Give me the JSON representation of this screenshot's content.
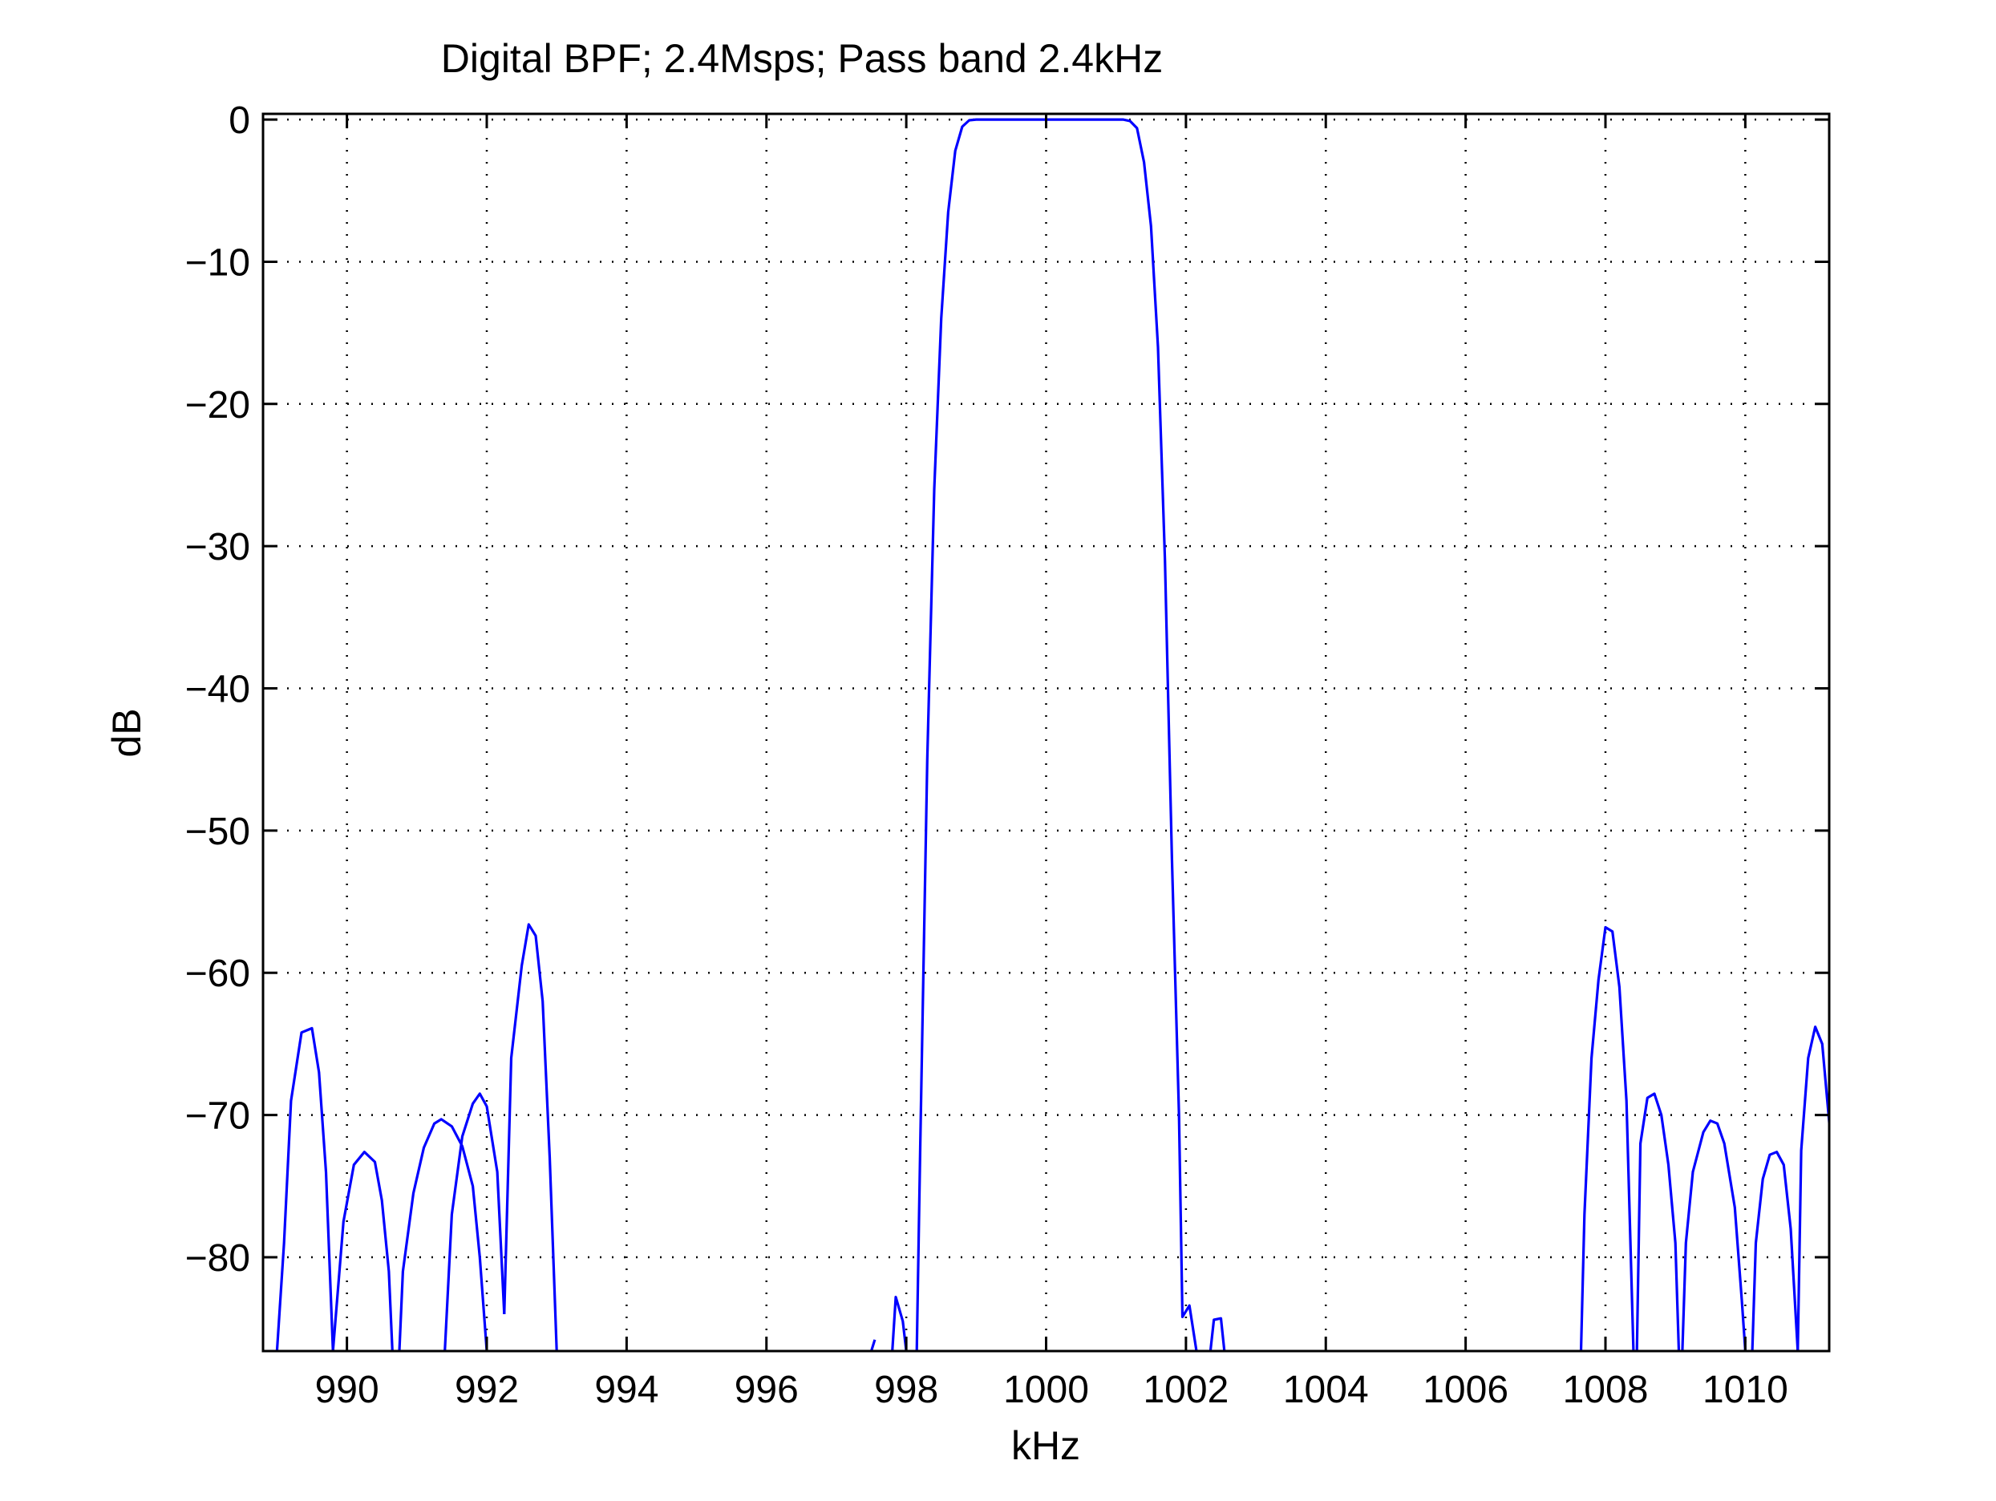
{
  "chart_data": {
    "type": "line",
    "title": "Digital BPF; 2.4Msps; Pass band 2.4kHz",
    "xlabel": "kHz",
    "ylabel": "dB",
    "xlim": [
      988.8,
      1011.2
    ],
    "ylim": [
      -86.6,
      0.4
    ],
    "xticks": [
      990,
      992,
      994,
      996,
      998,
      1000,
      1002,
      1004,
      1006,
      1008,
      1010
    ],
    "yticks": [
      0,
      -10,
      -20,
      -30,
      -40,
      -50,
      -60,
      -70,
      -80
    ],
    "ytick_labels": [
      "0",
      "−10",
      "−20",
      "−30",
      "−40",
      "−50",
      "−60",
      "−70",
      "−80"
    ],
    "grid": true,
    "series_color": "#0000ff",
    "series": [
      {
        "segments": [
          [
            [
              989.0,
              -86.6
            ],
            [
              989.1,
              -79
            ],
            [
              989.2,
              -69
            ],
            [
              989.35,
              -64.2
            ],
            [
              989.5,
              -63.9
            ],
            [
              989.6,
              -67
            ],
            [
              989.7,
              -74
            ],
            [
              989.8,
              -86.6
            ]
          ],
          [
            [
              989.8,
              -86.6
            ],
            [
              989.95,
              -77.5
            ],
            [
              990.1,
              -73.5
            ],
            [
              990.25,
              -72.6
            ],
            [
              990.4,
              -73.3
            ],
            [
              990.5,
              -76
            ],
            [
              990.6,
              -81
            ],
            [
              990.65,
              -86.6
            ]
          ],
          [
            [
              990.75,
              -86.6
            ],
            [
              990.8,
              -81
            ],
            [
              990.95,
              -75.5
            ],
            [
              991.1,
              -72.3
            ],
            [
              991.25,
              -70.6
            ],
            [
              991.35,
              -70.3
            ],
            [
              991.5,
              -70.8
            ],
            [
              991.65,
              -72.2
            ],
            [
              991.8,
              -75
            ],
            [
              991.9,
              -80
            ],
            [
              992.0,
              -86.6
            ]
          ],
          [
            [
              991.4,
              -86.6
            ],
            [
              991.5,
              -77
            ],
            [
              991.65,
              -71.5
            ],
            [
              991.8,
              -69.2
            ],
            [
              991.9,
              -68.5
            ],
            [
              992.0,
              -69.4
            ],
            [
              992.15,
              -74
            ],
            [
              992.25,
              -84
            ]
          ],
          [
            [
              992.25,
              -84
            ],
            [
              992.35,
              -66
            ],
            [
              992.5,
              -59.5
            ],
            [
              992.6,
              -56.6
            ],
            [
              992.7,
              -57.4
            ],
            [
              992.8,
              -62
            ],
            [
              992.9,
              -73
            ],
            [
              993.0,
              -86.6
            ]
          ],
          [
            [
              997.5,
              -86.6
            ],
            [
              997.55,
              -85.8
            ]
          ],
          [
            [
              997.8,
              -86.6
            ],
            [
              997.85,
              -82.8
            ],
            [
              997.95,
              -84.5
            ],
            [
              998.0,
              -86.6
            ]
          ],
          [
            [
              998.15,
              -86.6
            ],
            [
              998.2,
              -72
            ],
            [
              998.3,
              -45
            ],
            [
              998.4,
              -26
            ],
            [
              998.5,
              -14
            ],
            [
              998.6,
              -6.5
            ],
            [
              998.7,
              -2.2
            ],
            [
              998.8,
              -0.5
            ],
            [
              998.9,
              -0.05
            ],
            [
              999.0,
              0
            ],
            [
              1000.0,
              0
            ],
            [
              1001.1,
              0
            ],
            [
              1001.2,
              -0.1
            ],
            [
              1001.3,
              -0.6
            ],
            [
              1001.4,
              -3
            ],
            [
              1001.5,
              -7.5
            ],
            [
              1001.6,
              -16
            ],
            [
              1001.7,
              -31
            ],
            [
              1001.8,
              -52
            ],
            [
              1001.9,
              -70
            ],
            [
              1001.95,
              -84.2
            ],
            [
              1002.05,
              -83.4
            ],
            [
              1002.15,
              -86.6
            ]
          ],
          [
            [
              1002.35,
              -86.6
            ],
            [
              1002.4,
              -84.4
            ],
            [
              1002.5,
              -84.3
            ],
            [
              1002.55,
              -86.6
            ]
          ],
          [
            [
              1007.65,
              -86.6
            ],
            [
              1007.7,
              -77
            ],
            [
              1007.8,
              -66
            ],
            [
              1007.9,
              -60.5
            ],
            [
              1008.0,
              -56.8
            ],
            [
              1008.1,
              -57.1
            ],
            [
              1008.2,
              -61
            ],
            [
              1008.3,
              -69
            ],
            [
              1008.4,
              -86.6
            ]
          ],
          [
            [
              1008.45,
              -86.6
            ],
            [
              1008.5,
              -72
            ],
            [
              1008.6,
              -68.8
            ],
            [
              1008.7,
              -68.5
            ],
            [
              1008.8,
              -70
            ],
            [
              1008.9,
              -73.5
            ],
            [
              1009.0,
              -79
            ],
            [
              1009.05,
              -86.6
            ]
          ],
          [
            [
              1009.1,
              -86.6
            ],
            [
              1009.15,
              -79
            ],
            [
              1009.25,
              -74
            ],
            [
              1009.4,
              -71.2
            ],
            [
              1009.5,
              -70.4
            ],
            [
              1009.6,
              -70.6
            ],
            [
              1009.7,
              -72
            ],
            [
              1009.85,
              -76.5
            ],
            [
              1009.95,
              -83
            ],
            [
              1010.0,
              -86.6
            ]
          ],
          [
            [
              1010.1,
              -86.6
            ],
            [
              1010.15,
              -79
            ],
            [
              1010.25,
              -74.5
            ],
            [
              1010.35,
              -72.8
            ],
            [
              1010.45,
              -72.6
            ],
            [
              1010.55,
              -73.5
            ],
            [
              1010.65,
              -78
            ],
            [
              1010.75,
              -86.6
            ]
          ],
          [
            [
              1010.75,
              -86.6
            ],
            [
              1010.8,
              -72.5
            ],
            [
              1010.9,
              -66
            ],
            [
              1011.0,
              -63.8
            ],
            [
              1011.1,
              -65
            ],
            [
              1011.2,
              -70.5
            ],
            [
              1011.3,
              -79
            ],
            [
              1011.4,
              -86.6
            ]
          ]
        ]
      }
    ]
  }
}
